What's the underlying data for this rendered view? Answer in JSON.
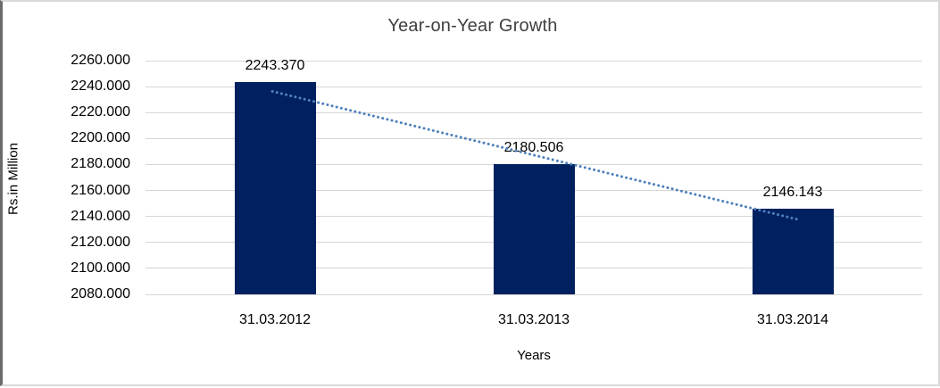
{
  "chart_data": {
    "type": "bar",
    "title": "Year-on-Year Growth",
    "xlabel": "Years",
    "ylabel": "Rs.in Million",
    "categories": [
      "31.03.2012",
      "31.03.2013",
      "31.03.2014"
    ],
    "values": [
      2243.37,
      2180.506,
      2146.143
    ],
    "data_labels": [
      "2243.370",
      "2180.506",
      "2146.143"
    ],
    "ylim": [
      2080,
      2260
    ],
    "ytick_step": 20,
    "ytick_labels": [
      "2080.000",
      "2100.000",
      "2120.000",
      "2140.000",
      "2160.000",
      "2180.000",
      "2200.000",
      "2220.000",
      "2240.000",
      "2260.000"
    ],
    "grid": true,
    "legend_position": "none",
    "trendline": {
      "style": "dotted",
      "type": "linear"
    },
    "colors": {
      "bar": "#002060",
      "trendline": "#4f81bd",
      "gridline": "#d6d6d6",
      "label_text": "#000000",
      "title_text": "#404040"
    }
  }
}
